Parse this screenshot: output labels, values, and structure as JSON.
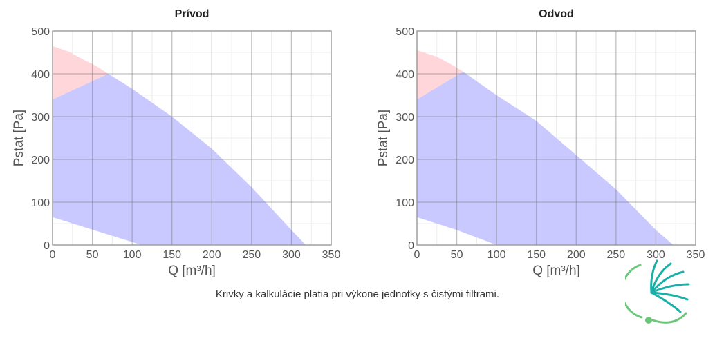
{
  "footnote": "Krivky a kalkulácie platia pri výkone jednotky s čistými filtrami.",
  "logo": {
    "icon": "fan-logo-icon",
    "color": "#1ab0a8",
    "accent": "#6cc77a"
  },
  "chart_data": [
    {
      "type": "area",
      "title": "Prívod",
      "xlabel": "Q [m³/h]",
      "ylabel": "Pstat [Pa]",
      "xlim": [
        0,
        350
      ],
      "ylim": [
        0,
        500
      ],
      "xticks": [
        0,
        50,
        100,
        150,
        200,
        250,
        300,
        350
      ],
      "yticks": [
        0,
        100,
        200,
        300,
        400,
        500
      ],
      "grid": true,
      "legend": "none",
      "colors": {
        "red": "#ffd6d9",
        "blue": "#c9c9ff"
      },
      "series": [
        {
          "color_key": "red",
          "values": [
            [
              0,
              465
            ],
            [
              20,
              452
            ],
            [
              40,
              432
            ],
            [
              55,
              418
            ],
            [
              70,
              400
            ],
            [
              0,
              340
            ]
          ]
        },
        {
          "color_key": "blue",
          "values": [
            [
              0,
              340
            ],
            [
              70,
              400
            ],
            [
              100,
              365
            ],
            [
              150,
              300
            ],
            [
              200,
              225
            ],
            [
              250,
              135
            ],
            [
              300,
              35
            ],
            [
              318,
              0
            ],
            [
              112,
              0
            ],
            [
              60,
              30
            ],
            [
              0,
              65
            ]
          ]
        }
      ]
    },
    {
      "type": "area",
      "title": "Odvod",
      "xlabel": "Q [m³/h]",
      "ylabel": "Pstat [Pa]",
      "xlim": [
        0,
        350
      ],
      "ylim": [
        0,
        500
      ],
      "xticks": [
        0,
        50,
        100,
        150,
        200,
        250,
        300,
        350
      ],
      "yticks": [
        0,
        100,
        200,
        300,
        400,
        500
      ],
      "grid": true,
      "legend": "none",
      "colors": {
        "red": "#ffd6d9",
        "blue": "#c9c9ff"
      },
      "series": [
        {
          "color_key": "red",
          "values": [
            [
              0,
              455
            ],
            [
              25,
              440
            ],
            [
              45,
              420
            ],
            [
              58,
              405
            ],
            [
              0,
              340
            ]
          ]
        },
        {
          "color_key": "blue",
          "values": [
            [
              0,
              340
            ],
            [
              58,
              405
            ],
            [
              100,
              350
            ],
            [
              150,
              290
            ],
            [
              200,
              210
            ],
            [
              250,
              130
            ],
            [
              300,
              35
            ],
            [
              322,
              0
            ],
            [
              100,
              0
            ],
            [
              50,
              35
            ],
            [
              0,
              65
            ]
          ]
        }
      ]
    }
  ]
}
